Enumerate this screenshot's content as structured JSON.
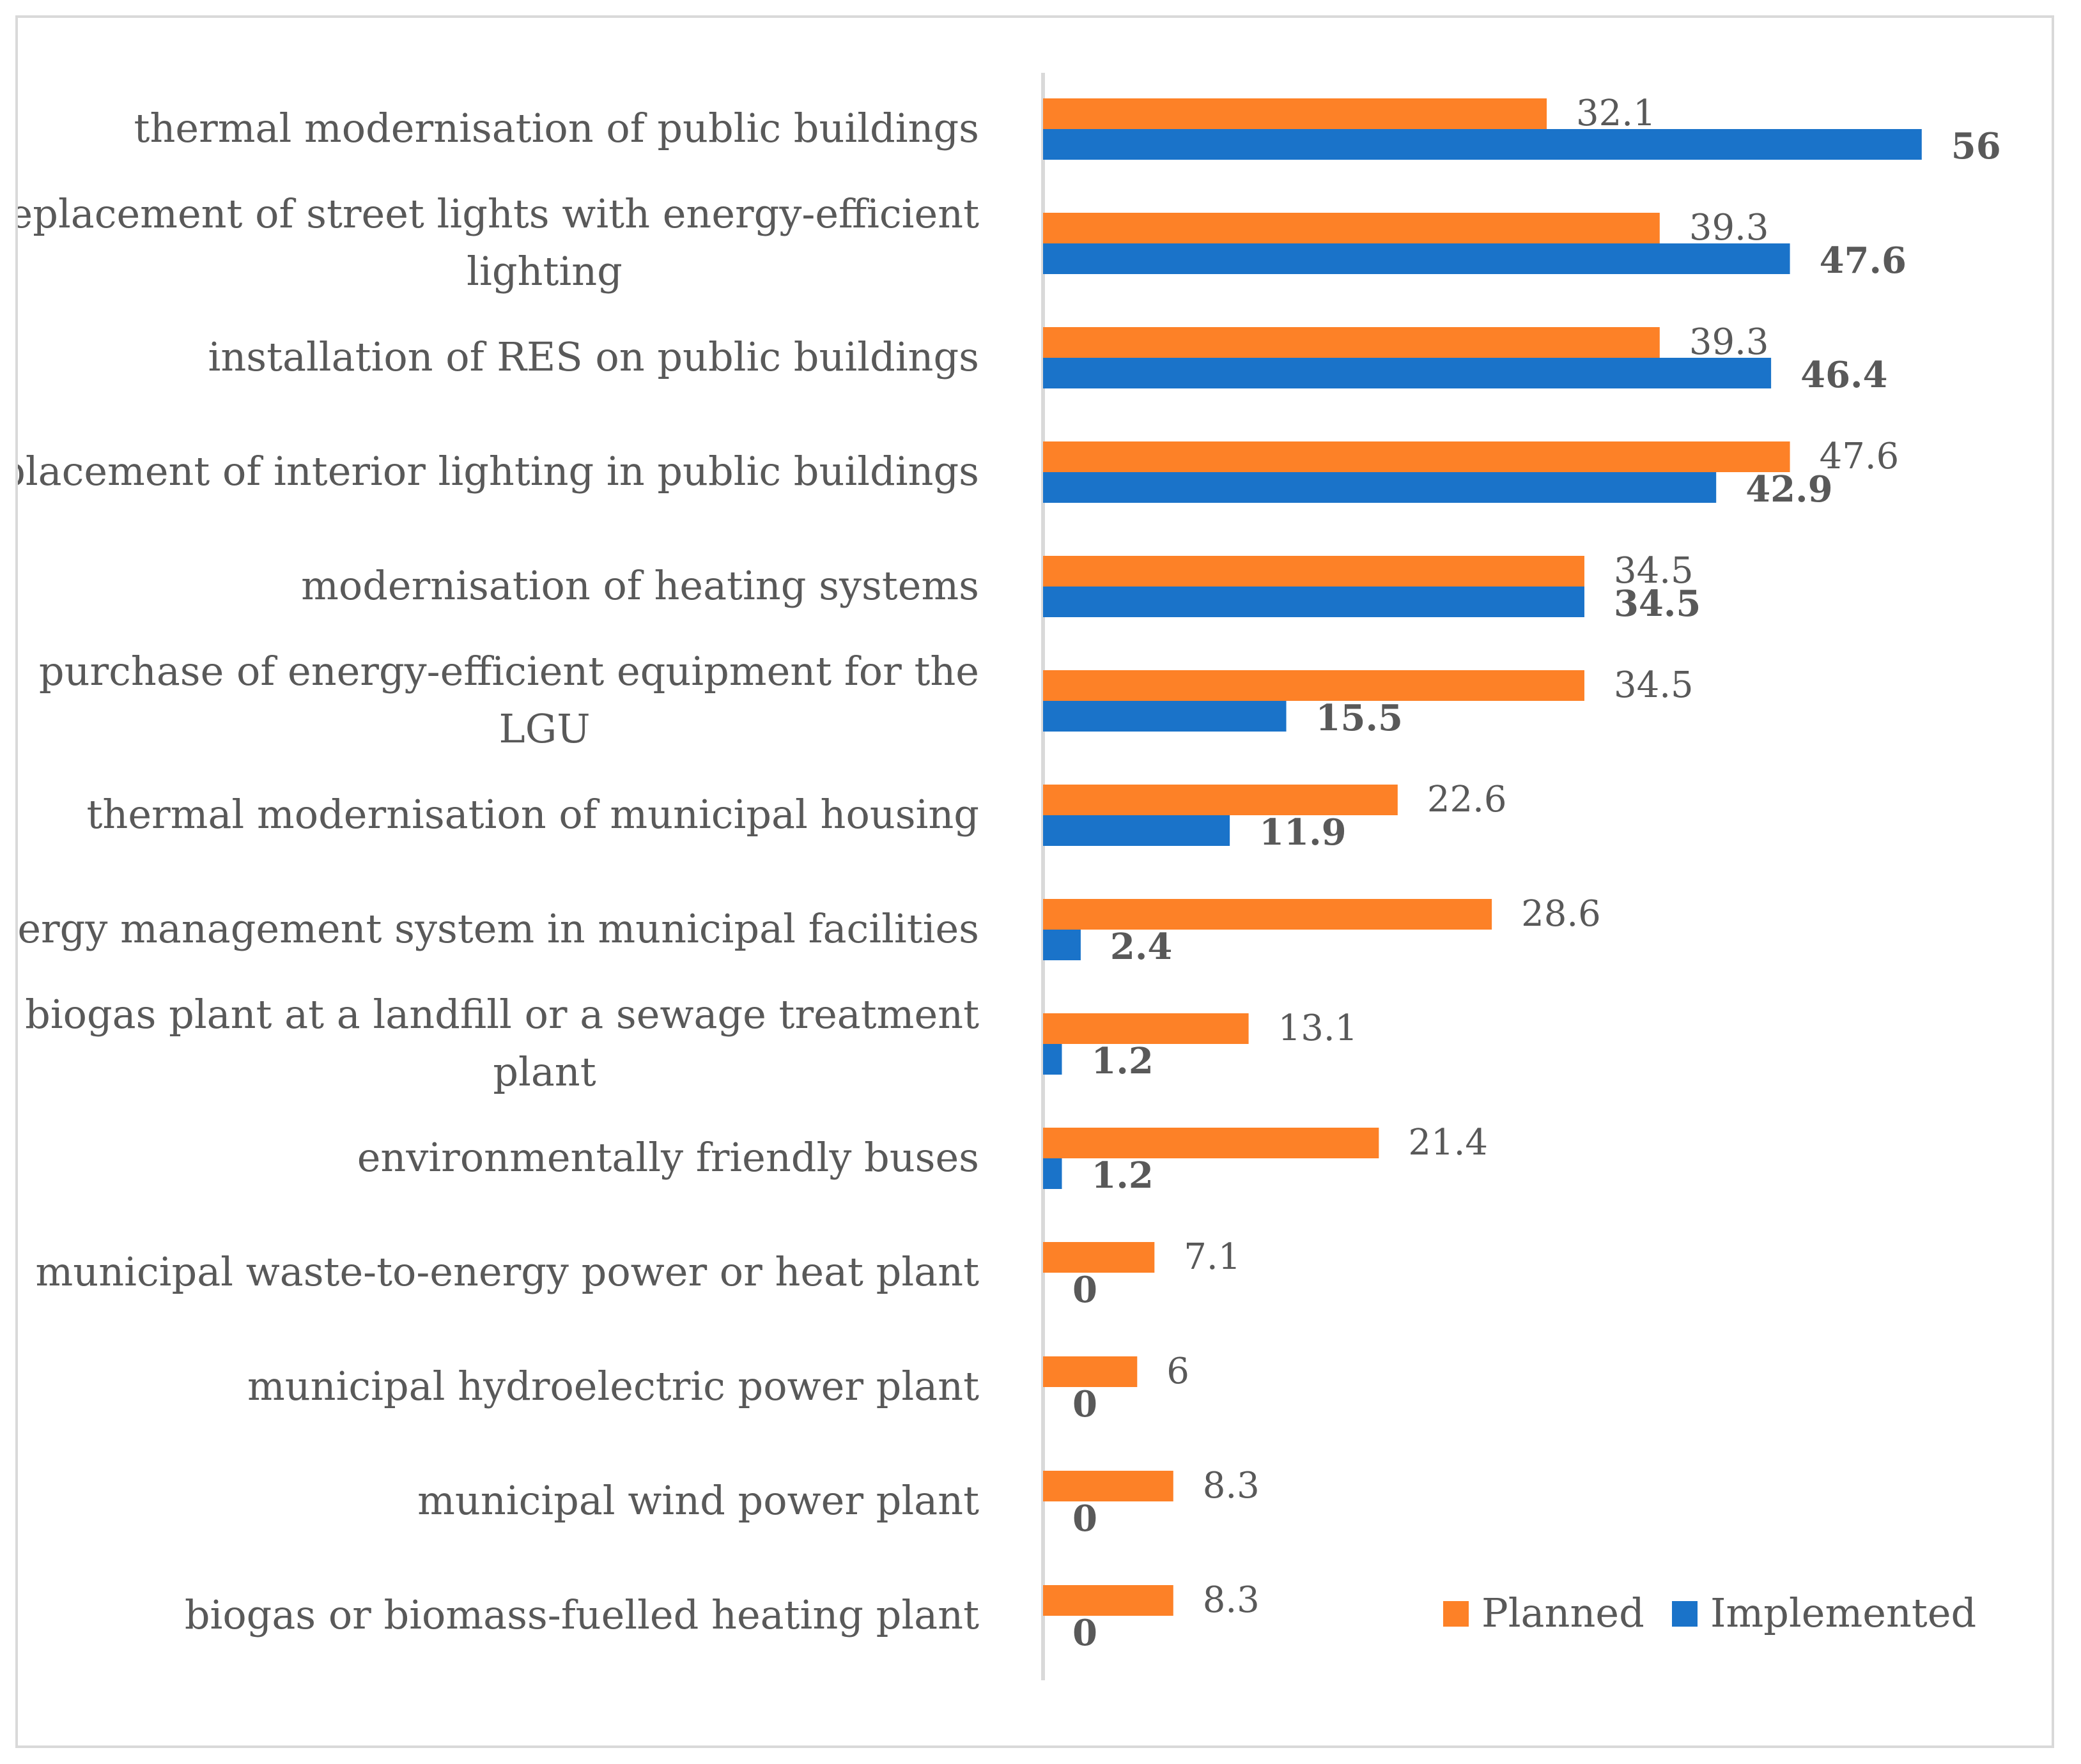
{
  "chart_data": {
    "type": "bar",
    "orientation": "horizontal",
    "categories": [
      [
        "thermal modernisation of public buildings"
      ],
      [
        "replacement of street lights with energy-efficient",
        "lighting"
      ],
      [
        "installation of RES on public buildings"
      ],
      [
        "replacement of interior lighting in public buildings"
      ],
      [
        "modernisation of heating systems"
      ],
      [
        "purchase of energy-efficient equipment for the",
        "LGU"
      ],
      [
        "thermal modernisation of municipal housing"
      ],
      [
        "energy management system in municipal facilities"
      ],
      [
        "biogas plant at a landfill or a sewage treatment",
        "plant"
      ],
      [
        "environmentally friendly buses"
      ],
      [
        "municipal waste-to-energy power or heat plant"
      ],
      [
        "municipal hydroelectric power plant"
      ],
      [
        "municipal wind power plant"
      ],
      [
        "biogas or biomass-fuelled heating plant"
      ]
    ],
    "series": [
      {
        "name": "Planned",
        "color": "#fd8127",
        "values": [
          32.1,
          39.3,
          39.3,
          47.6,
          34.5,
          34.5,
          22.6,
          28.6,
          13.1,
          21.4,
          7.1,
          6,
          8.3,
          8.3
        ],
        "labels": [
          "32.1",
          "39.3",
          "39.3",
          "47.6",
          "34.5",
          "34.5",
          "22.6",
          "28.6",
          "13.1",
          "21.4",
          "7.1",
          "6",
          "8.3",
          "8.3"
        ]
      },
      {
        "name": "Implemented",
        "color": "#1a73c9",
        "values": [
          56,
          47.6,
          46.4,
          42.9,
          34.5,
          15.5,
          11.9,
          2.4,
          1.2,
          1.2,
          0,
          0,
          0,
          0
        ],
        "labels": [
          "56",
          "47.6",
          "46.4",
          "42.9",
          "34.5",
          "15.5",
          "11.9",
          "2.4",
          "1.2",
          "1.2",
          "0",
          "0",
          "0",
          "0"
        ]
      }
    ],
    "xlim": [
      0,
      60
    ],
    "legend": [
      "Planned",
      "Implemented"
    ],
    "legend_position": "bottom-right",
    "title": "",
    "xlabel": "",
    "ylabel": ""
  }
}
